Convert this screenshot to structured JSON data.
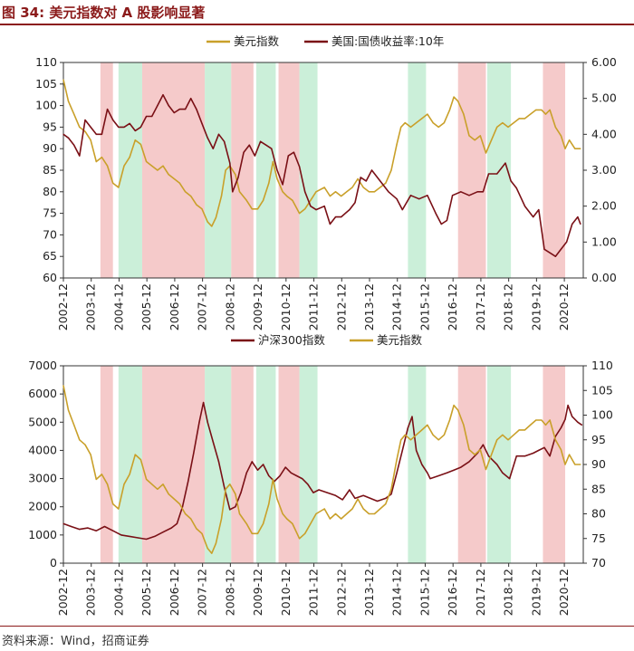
{
  "figure": {
    "title": "图 34:  美元指数对 A 股影响显著",
    "source": "资料来源：Wind，招商证券"
  },
  "colors": {
    "dollar": "#c9a02a",
    "bond": "#7a1016",
    "csi": "#7a1016",
    "shade_red": "#f3c1c1",
    "shade_green": "#c2ecd2"
  },
  "chart_data": [
    {
      "type": "line",
      "title": "",
      "x_tick_labels": [
        "2002-12",
        "2003-12",
        "2004-12",
        "2005-12",
        "2006-12",
        "2007-12",
        "2008-12",
        "2009-12",
        "2010-12",
        "2011-12",
        "2012-12",
        "2013-12",
        "2014-12",
        "2015-12",
        "2016-12",
        "2017-12",
        "2018-12",
        "2019-12",
        "2020-12"
      ],
      "x_range": [
        2002.92,
        2021.6
      ],
      "left_axis": {
        "ylim": [
          60,
          110
        ],
        "ticks": [
          "60",
          "65",
          "70",
          "75",
          "80",
          "85",
          "90",
          "95",
          "100",
          "105",
          "110"
        ]
      },
      "right_axis": {
        "ylim": [
          0,
          6
        ],
        "ticks": [
          "0.00",
          "1.00",
          "2.00",
          "3.00",
          "4.00",
          "5.00",
          "6.00"
        ]
      },
      "legend": [
        "美元指数",
        "美国:国债收益率:10年"
      ],
      "shaded_periods": [
        {
          "start": 2004.25,
          "end": 2004.7,
          "color": "red"
        },
        {
          "start": 2004.9,
          "end": 2005.75,
          "color": "green"
        },
        {
          "start": 2005.75,
          "end": 2008.0,
          "color": "red"
        },
        {
          "start": 2008.0,
          "end": 2008.95,
          "color": "green"
        },
        {
          "start": 2008.95,
          "end": 2009.75,
          "color": "red"
        },
        {
          "start": 2009.85,
          "end": 2010.55,
          "color": "green"
        },
        {
          "start": 2010.65,
          "end": 2011.4,
          "color": "red"
        },
        {
          "start": 2011.4,
          "end": 2012.05,
          "color": "green"
        },
        {
          "start": 2015.3,
          "end": 2015.95,
          "color": "green"
        },
        {
          "start": 2017.1,
          "end": 2018.1,
          "color": "red"
        },
        {
          "start": 2018.15,
          "end": 2019.0,
          "color": "green"
        },
        {
          "start": 2020.15,
          "end": 2020.95,
          "color": "red"
        }
      ],
      "series": [
        {
          "name": "美元指数",
          "axis": "left",
          "x": [
            2002.92,
            2003.1,
            2003.3,
            2003.5,
            2003.7,
            2003.9,
            2004.1,
            2004.3,
            2004.5,
            2004.7,
            2004.9,
            2005.1,
            2005.3,
            2005.5,
            2005.7,
            2005.9,
            2006.1,
            2006.3,
            2006.5,
            2006.7,
            2006.9,
            2007.1,
            2007.3,
            2007.5,
            2007.7,
            2007.9,
            2008.1,
            2008.25,
            2008.4,
            2008.6,
            2008.75,
            2008.9,
            2009.1,
            2009.25,
            2009.5,
            2009.7,
            2009.9,
            2010.1,
            2010.3,
            2010.45,
            2010.6,
            2010.8,
            2010.95,
            2011.15,
            2011.4,
            2011.6,
            2011.8,
            2012.0,
            2012.3,
            2012.5,
            2012.7,
            2012.9,
            2013.1,
            2013.3,
            2013.5,
            2013.7,
            2013.9,
            2014.1,
            2014.3,
            2014.5,
            2014.7,
            2014.9,
            2015.05,
            2015.2,
            2015.4,
            2015.6,
            2015.8,
            2016.0,
            2016.2,
            2016.4,
            2016.6,
            2016.8,
            2016.95,
            2017.1,
            2017.3,
            2017.5,
            2017.7,
            2017.9,
            2018.1,
            2018.3,
            2018.5,
            2018.7,
            2018.9,
            2019.1,
            2019.3,
            2019.5,
            2019.7,
            2019.9,
            2020.1,
            2020.25,
            2020.4,
            2020.6,
            2020.8,
            2020.95,
            2021.1,
            2021.3,
            2021.5
          ],
          "values": [
            106,
            101,
            98,
            95,
            94,
            92,
            87,
            88,
            86,
            82,
            81,
            86,
            88,
            92,
            91,
            87,
            86,
            85,
            86,
            84,
            83,
            82,
            80,
            79,
            77,
            76,
            73,
            72,
            74,
            79,
            85,
            86,
            84,
            80,
            78,
            76,
            76,
            78,
            82,
            87,
            83,
            80,
            79,
            78,
            75,
            76,
            78,
            80,
            81,
            79,
            80,
            79,
            80,
            81,
            83,
            81,
            80,
            80,
            81,
            82,
            85,
            91,
            95,
            96,
            95,
            96,
            97,
            98,
            96,
            95,
            96,
            99,
            102,
            101,
            98,
            93,
            92,
            93,
            89,
            92,
            95,
            96,
            95,
            96,
            97,
            97,
            98,
            99,
            99,
            98,
            99,
            95,
            93,
            90,
            92,
            90,
            90
          ]
        },
        {
          "name": "美国:国债收益率:10年",
          "axis": "right",
          "x": [
            2002.92,
            2003.1,
            2003.3,
            2003.5,
            2003.7,
            2003.9,
            2004.1,
            2004.3,
            2004.5,
            2004.7,
            2004.9,
            2005.1,
            2005.3,
            2005.5,
            2005.7,
            2005.9,
            2006.1,
            2006.3,
            2006.5,
            2006.7,
            2006.9,
            2007.1,
            2007.3,
            2007.5,
            2007.7,
            2007.9,
            2008.1,
            2008.3,
            2008.5,
            2008.7,
            2008.9,
            2009.0,
            2009.2,
            2009.4,
            2009.6,
            2009.8,
            2010.0,
            2010.2,
            2010.4,
            2010.6,
            2010.8,
            2011.0,
            2011.2,
            2011.4,
            2011.6,
            2011.8,
            2012.0,
            2012.3,
            2012.5,
            2012.7,
            2012.9,
            2013.2,
            2013.4,
            2013.6,
            2013.8,
            2014.0,
            2014.3,
            2014.6,
            2014.9,
            2015.1,
            2015.4,
            2015.7,
            2016.0,
            2016.3,
            2016.5,
            2016.7,
            2016.9,
            2017.2,
            2017.5,
            2017.8,
            2018.0,
            2018.2,
            2018.5,
            2018.8,
            2019.0,
            2019.2,
            2019.5,
            2019.8,
            2020.0,
            2020.2,
            2020.4,
            2020.6,
            2020.8,
            2021.0,
            2021.2,
            2021.4,
            2021.5
          ],
          "values": [
            4.0,
            3.9,
            3.7,
            3.4,
            4.4,
            4.2,
            4.0,
            4.0,
            4.7,
            4.4,
            4.2,
            4.2,
            4.3,
            4.1,
            4.2,
            4.5,
            4.5,
            4.8,
            5.1,
            4.8,
            4.6,
            4.7,
            4.7,
            5.0,
            4.7,
            4.3,
            3.9,
            3.6,
            4.0,
            3.8,
            3.2,
            2.4,
            2.8,
            3.5,
            3.7,
            3.4,
            3.8,
            3.7,
            3.6,
            3.0,
            2.6,
            3.4,
            3.5,
            3.1,
            2.4,
            2.0,
            1.9,
            2.0,
            1.5,
            1.7,
            1.7,
            1.9,
            2.1,
            2.8,
            2.7,
            3.0,
            2.7,
            2.4,
            2.2,
            1.9,
            2.3,
            2.2,
            2.3,
            1.8,
            1.5,
            1.6,
            2.3,
            2.4,
            2.3,
            2.4,
            2.4,
            2.9,
            2.9,
            3.2,
            2.7,
            2.5,
            2.0,
            1.7,
            1.9,
            0.8,
            0.7,
            0.6,
            0.8,
            1.0,
            1.5,
            1.7,
            1.5
          ]
        }
      ]
    },
    {
      "type": "line",
      "title": "",
      "x_tick_labels": [
        "2002-12",
        "2003-12",
        "2004-12",
        "2005-12",
        "2006-12",
        "2007-12",
        "2008-12",
        "2009-12",
        "2010-12",
        "2011-12",
        "2012-12",
        "2013-12",
        "2014-12",
        "2015-12",
        "2016-12",
        "2017-12",
        "2018-12",
        "2019-12",
        "2020-12"
      ],
      "x_range": [
        2002.92,
        2021.6
      ],
      "left_axis": {
        "ylim": [
          0,
          7000
        ],
        "ticks": [
          "0",
          "1000",
          "2000",
          "3000",
          "4000",
          "5000",
          "6000",
          "7000"
        ]
      },
      "right_axis": {
        "ylim": [
          70,
          110
        ],
        "ticks": [
          "70",
          "75",
          "80",
          "85",
          "90",
          "95",
          "100",
          "105",
          "110"
        ]
      },
      "legend": [
        "沪深300指数",
        "美元指数"
      ],
      "shaded_periods": [
        {
          "start": 2004.25,
          "end": 2004.7,
          "color": "red"
        },
        {
          "start": 2004.9,
          "end": 2005.75,
          "color": "green"
        },
        {
          "start": 2005.75,
          "end": 2008.0,
          "color": "red"
        },
        {
          "start": 2008.0,
          "end": 2008.95,
          "color": "green"
        },
        {
          "start": 2008.95,
          "end": 2009.75,
          "color": "red"
        },
        {
          "start": 2009.85,
          "end": 2010.55,
          "color": "green"
        },
        {
          "start": 2010.65,
          "end": 2011.4,
          "color": "red"
        },
        {
          "start": 2011.4,
          "end": 2012.05,
          "color": "green"
        },
        {
          "start": 2015.3,
          "end": 2015.95,
          "color": "green"
        },
        {
          "start": 2017.1,
          "end": 2018.1,
          "color": "red"
        },
        {
          "start": 2018.15,
          "end": 2019.0,
          "color": "green"
        },
        {
          "start": 2020.15,
          "end": 2020.95,
          "color": "red"
        }
      ],
      "series": [
        {
          "name": "沪深300指数",
          "axis": "left",
          "x": [
            2002.92,
            2003.2,
            2003.5,
            2003.8,
            2004.1,
            2004.4,
            2004.7,
            2005.0,
            2005.3,
            2005.6,
            2005.9,
            2006.2,
            2006.5,
            2006.8,
            2007.0,
            2007.2,
            2007.4,
            2007.6,
            2007.8,
            2007.95,
            2008.1,
            2008.3,
            2008.5,
            2008.7,
            2008.9,
            2009.1,
            2009.3,
            2009.5,
            2009.7,
            2009.9,
            2010.1,
            2010.3,
            2010.5,
            2010.7,
            2010.9,
            2011.1,
            2011.3,
            2011.5,
            2011.7,
            2011.9,
            2012.1,
            2012.4,
            2012.7,
            2012.95,
            2013.2,
            2013.4,
            2013.7,
            2013.95,
            2014.2,
            2014.5,
            2014.7,
            2014.9,
            2015.1,
            2015.3,
            2015.45,
            2015.6,
            2015.8,
            2016.0,
            2016.1,
            2016.4,
            2016.7,
            2016.95,
            2017.2,
            2017.5,
            2017.8,
            2018.0,
            2018.2,
            2018.5,
            2018.7,
            2018.95,
            2019.2,
            2019.5,
            2019.8,
            2020.0,
            2020.2,
            2020.4,
            2020.6,
            2020.8,
            2020.95,
            2021.05,
            2021.2,
            2021.4,
            2021.55
          ],
          "values": [
            1400,
            1300,
            1200,
            1250,
            1150,
            1300,
            1150,
            1000,
            950,
            900,
            850,
            950,
            1100,
            1250,
            1400,
            2000,
            2900,
            3900,
            5000,
            5700,
            5000,
            4300,
            3600,
            2700,
            1900,
            2000,
            2500,
            3200,
            3600,
            3300,
            3500,
            3100,
            2900,
            3100,
            3400,
            3200,
            3100,
            3000,
            2800,
            2500,
            2600,
            2500,
            2400,
            2250,
            2600,
            2300,
            2400,
            2300,
            2200,
            2300,
            2450,
            3200,
            4000,
            4800,
            5200,
            4000,
            3500,
            3200,
            3000,
            3100,
            3200,
            3300,
            3400,
            3600,
            3900,
            4200,
            3800,
            3500,
            3200,
            3000,
            3800,
            3800,
            3900,
            4000,
            4100,
            3800,
            4500,
            4800,
            5100,
            5600,
            5200,
            5000,
            4900
          ]
        },
        {
          "name": "美元指数",
          "axis": "right",
          "x": [
            2002.92,
            2003.1,
            2003.3,
            2003.5,
            2003.7,
            2003.9,
            2004.1,
            2004.3,
            2004.5,
            2004.7,
            2004.9,
            2005.1,
            2005.3,
            2005.5,
            2005.7,
            2005.9,
            2006.1,
            2006.3,
            2006.5,
            2006.7,
            2006.9,
            2007.1,
            2007.3,
            2007.5,
            2007.7,
            2007.9,
            2008.1,
            2008.25,
            2008.4,
            2008.6,
            2008.75,
            2008.9,
            2009.1,
            2009.25,
            2009.5,
            2009.7,
            2009.9,
            2010.1,
            2010.3,
            2010.45,
            2010.6,
            2010.8,
            2010.95,
            2011.15,
            2011.4,
            2011.6,
            2011.8,
            2012.0,
            2012.3,
            2012.5,
            2012.7,
            2012.9,
            2013.1,
            2013.3,
            2013.5,
            2013.7,
            2013.9,
            2014.1,
            2014.3,
            2014.5,
            2014.7,
            2014.9,
            2015.05,
            2015.2,
            2015.4,
            2015.6,
            2015.8,
            2016.0,
            2016.2,
            2016.4,
            2016.6,
            2016.8,
            2016.95,
            2017.1,
            2017.3,
            2017.5,
            2017.7,
            2017.9,
            2018.1,
            2018.3,
            2018.5,
            2018.7,
            2018.9,
            2019.1,
            2019.3,
            2019.5,
            2019.7,
            2019.9,
            2020.1,
            2020.25,
            2020.4,
            2020.6,
            2020.8,
            2020.95,
            2021.1,
            2021.3,
            2021.5
          ],
          "values": [
            106,
            101,
            98,
            95,
            94,
            92,
            87,
            88,
            86,
            82,
            81,
            86,
            88,
            92,
            91,
            87,
            86,
            85,
            86,
            84,
            83,
            82,
            80,
            79,
            77,
            76,
            73,
            72,
            74,
            79,
            85,
            86,
            84,
            80,
            78,
            76,
            76,
            78,
            82,
            87,
            83,
            80,
            79,
            78,
            75,
            76,
            78,
            80,
            81,
            79,
            80,
            79,
            80,
            81,
            83,
            81,
            80,
            80,
            81,
            82,
            85,
            91,
            95,
            96,
            95,
            96,
            97,
            98,
            96,
            95,
            96,
            99,
            102,
            101,
            98,
            93,
            92,
            93,
            89,
            92,
            95,
            96,
            95,
            96,
            97,
            97,
            98,
            99,
            99,
            98,
            99,
            95,
            93,
            90,
            92,
            90,
            90
          ]
        }
      ]
    }
  ]
}
